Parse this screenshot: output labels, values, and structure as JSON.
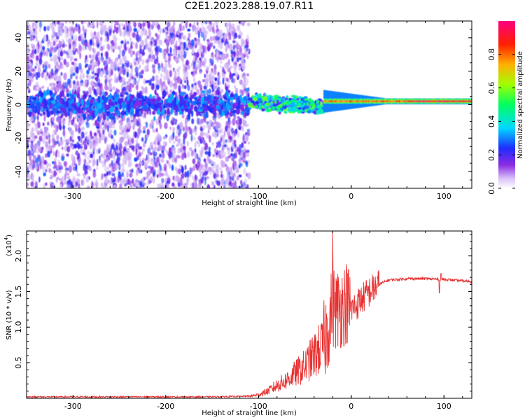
{
  "title": "C2E1.2023.288.19.07.R11",
  "chart_data": [
    {
      "type": "heatmap",
      "xlabel": "Height of straight line (km)",
      "ylabel": "Frequency (Hz)",
      "xlim": [
        -350,
        130
      ],
      "ylim": [
        -50,
        50
      ],
      "xticks": [
        -300,
        -200,
        -100,
        0,
        100
      ],
      "yticks": [
        -40,
        -20,
        0,
        20,
        40
      ],
      "colorbar": {
        "label": "Normalized spectral amplitude",
        "range": [
          0.0,
          1.0
        ],
        "ticks": [
          "0.0",
          "0.2",
          "0.4",
          "0.6",
          "0.8"
        ],
        "colors": [
          "#ffffff",
          "#c8a8f0",
          "#8a2be2",
          "#2020ff",
          "#00e0ff",
          "#00ff40",
          "#c8ff00",
          "#ff8000",
          "#ff0000",
          "#ff0080"
        ]
      },
      "regions": [
        {
          "x_range": [
            -350,
            -110
          ],
          "description_level": 0.25,
          "freq_spread": [
            -50,
            50
          ]
        },
        {
          "x_range": [
            -110,
            -30
          ],
          "description_level": 0.55,
          "freq_center": 2
        },
        {
          "x_range": [
            -30,
            130
          ],
          "description_level": 0.9,
          "freq_center": 2
        }
      ]
    },
    {
      "type": "line",
      "xlabel": "Height of straight line (km)",
      "ylabel": "SNR (10 * v/v)",
      "yscale_label": "(x10",
      "yscale_exp": "4",
      "xlim": [
        -350,
        130
      ],
      "ylim": [
        0,
        2.35
      ],
      "xticks": [
        -300,
        -200,
        -100,
        0,
        100
      ],
      "yticks": [
        0.5,
        1.0,
        1.5,
        2.0
      ],
      "series": [
        {
          "color": "#e83030",
          "x": [
            -350,
            -300,
            -250,
            -200,
            -150,
            -110,
            -100,
            -90,
            -80,
            -70,
            -60,
            -50,
            -40,
            -30,
            -25,
            -20,
            -15,
            -10,
            -5,
            0,
            5,
            10,
            20,
            30,
            40,
            60,
            80,
            100,
            120,
            130
          ],
          "y": [
            0.02,
            0.02,
            0.02,
            0.02,
            0.02,
            0.03,
            0.05,
            0.1,
            0.18,
            0.25,
            0.35,
            0.45,
            0.6,
            0.75,
            1.0,
            1.3,
            1.25,
            1.3,
            1.35,
            1.25,
            1.3,
            1.38,
            1.5,
            1.6,
            1.66,
            1.68,
            1.68,
            1.67,
            1.65,
            1.64
          ]
        }
      ]
    }
  ]
}
